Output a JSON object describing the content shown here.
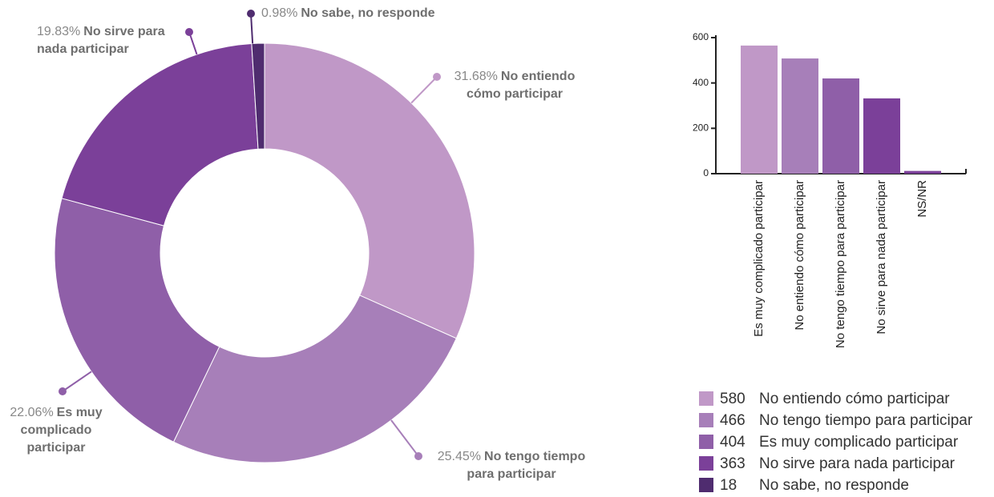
{
  "chart_data": [
    {
      "type": "donut",
      "categories": [
        "No entiendo cómo participar",
        "No tengo tiempo para participar",
        "Es muy complicado participar",
        "No sirve para nada participar",
        "No sabe, no responde"
      ],
      "values": [
        31.68,
        25.45,
        22.06,
        19.83,
        0.98
      ],
      "value_labels": [
        "31.68%",
        "25.45%",
        "22.06%",
        "19.83%",
        "0.98%"
      ],
      "counts": [
        580,
        466,
        404,
        363,
        18
      ],
      "colors": [
        "#c098c7",
        "#a77fb9",
        "#8f5fa8",
        "#7b4099",
        "#4f2c6f"
      ]
    },
    {
      "type": "bar",
      "categories": [
        "Es muy complicado participar",
        "No entiendo cómo participar",
        "No tengo tiempo para participar",
        "No sirve para nada participar",
        "NS/NR"
      ],
      "values": [
        565,
        508,
        420,
        332,
        12
      ],
      "colors": [
        "#c098c7",
        "#a77fb9",
        "#8f5fa8",
        "#7b4099",
        "#7b4099"
      ],
      "ylim": [
        0,
        600
      ],
      "yticks": [
        0,
        200,
        400,
        600
      ]
    }
  ]
}
